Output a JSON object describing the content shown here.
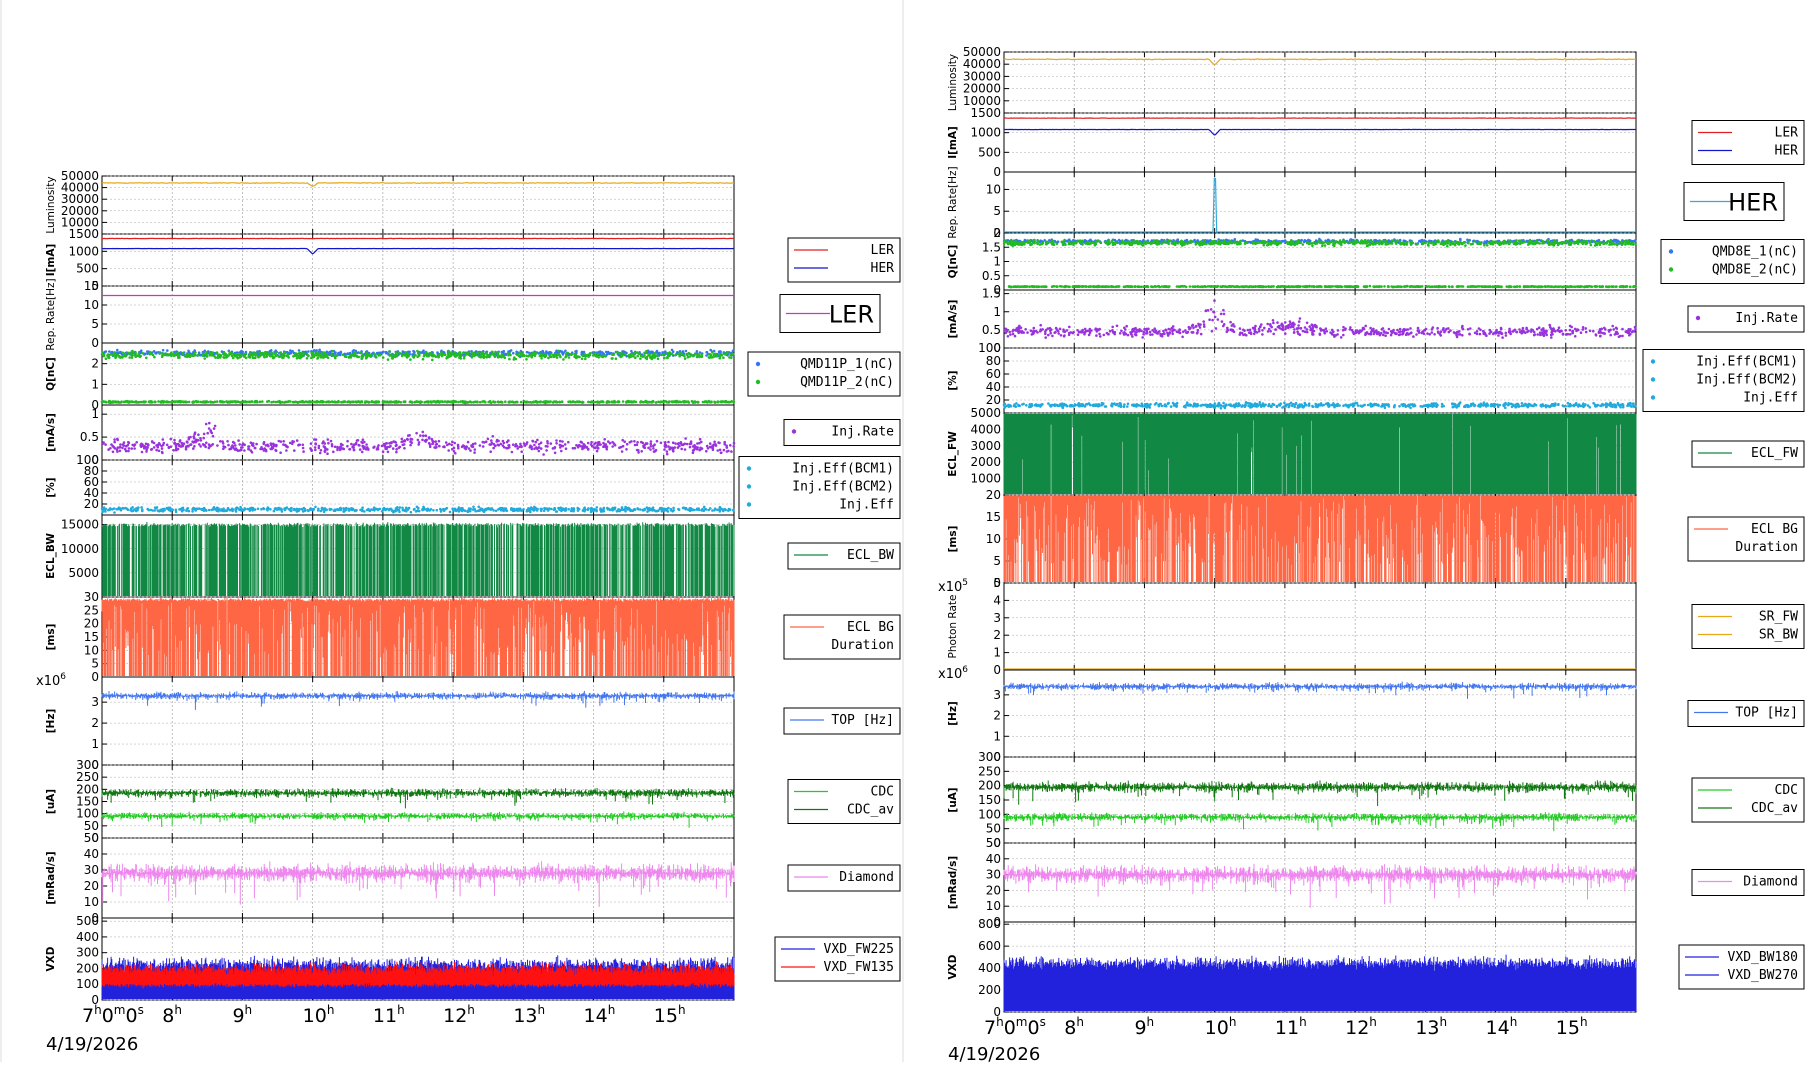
{
  "colors": {
    "luminosity": "#e6a817",
    "ler": "#e02020",
    "her": "#1515cc",
    "rep_ler": "#cc33cc",
    "rep_her": "#33aadd",
    "q1": "#3377ee",
    "q2": "#22bb22",
    "inj_rate": "#9933dd",
    "inj_eff": "#22aadd",
    "ecl": "#118844",
    "ecl_bg": "#ff6644",
    "sr_fw": "#e6a817",
    "sr_bw": "#ff2200",
    "top": "#4477ee",
    "cdc": "#22cc22",
    "cdc_av": "#117711",
    "diamond": "#ee88ee",
    "vxd_a": "#2222dd",
    "vxd_b": "#ff1111"
  },
  "chart_data": [
    {
      "type": "line",
      "title": "",
      "x_tick_labels": [
        "7h0m0s",
        "8h",
        "9h",
        "10h",
        "11h",
        "12h",
        "13h",
        "14h",
        "15h"
      ],
      "xlim": [
        7.0,
        16.0
      ],
      "date": "4/19/2026",
      "panels": [
        {
          "id": "lum",
          "ylabel": "Luminosity",
          "ylim": [
            0,
            50000
          ],
          "yticks": [
            10000,
            20000,
            30000,
            40000,
            50000
          ],
          "series": [
            {
              "name": "",
              "kind": "line",
              "color": "luminosity",
              "base": 44000,
              "noise": 1500,
              "dips": [
                [
                  10.0,
                  -3000
                ]
              ]
            }
          ]
        },
        {
          "id": "cur",
          "ylabel": "I[mA]",
          "ylim": [
            0,
            1500
          ],
          "yticks": [
            0,
            500,
            1000,
            1500
          ],
          "legend": [
            "LER",
            "HER"
          ],
          "series": [
            {
              "name": "LER",
              "kind": "line",
              "color": "ler",
              "base": 1370,
              "noise": 25
            },
            {
              "name": "HER",
              "kind": "line",
              "color": "her",
              "base": 1080,
              "noise": 10,
              "dips": [
                [
                  10.0,
                  -160
                ]
              ]
            }
          ]
        },
        {
          "id": "rep",
          "ylabel": "Rep. Rate[Hz]",
          "ylim": [
            0,
            15
          ],
          "yticks": [
            0,
            5,
            10,
            15
          ],
          "legend_big": "LER",
          "series": [
            {
              "name": "LER",
              "kind": "line",
              "color": "rep_ler",
              "base": 12.5,
              "noise": 0.05
            }
          ]
        },
        {
          "id": "q",
          "ylabel": "Q[nC]",
          "ylim": [
            0,
            3
          ],
          "yticks": [
            0,
            1,
            2
          ],
          "legend": [
            "QMD11P_1(nC)",
            "QMD11P_2(nC)"
          ],
          "series": [
            {
              "name": "QMD11P_1(nC)",
              "kind": "scatter",
              "color": "q1",
              "base": 2.5,
              "noise": 0.2
            },
            {
              "name": "QMD11P_2(nC)",
              "kind": "scatter",
              "color": "q2",
              "base": 2.4,
              "noise": 0.25
            },
            {
              "name": "",
              "kind": "scatter",
              "color": "q2",
              "base": 0.15,
              "noise": 0.05
            }
          ]
        },
        {
          "id": "rate",
          "ylabel": "[mA/s]",
          "ylim": [
            0,
            1.2
          ],
          "yticks": [
            0,
            0.5,
            1
          ],
          "legend": [
            "Inj.Rate"
          ],
          "series": [
            {
              "name": "Inj.Rate",
              "kind": "scatter",
              "color": "inj_rate",
              "base": 0.3,
              "noise": 0.2,
              "bumps": [
                [
                  8.5,
                  0.5
                ],
                [
                  11.5,
                  0.3
                ],
                [
                  12.5,
                  0.2
                ],
                [
                  14.2,
                  0.1
                ]
              ]
            }
          ]
        },
        {
          "id": "eff",
          "ylabel": "[%]",
          "ylim": [
            0,
            100
          ],
          "yticks": [
            20,
            40,
            60,
            80,
            100
          ],
          "legend": [
            "Inj.Eff(BCM1)",
            "Inj.Eff(BCM2)",
            "Inj.Eff"
          ],
          "series": [
            {
              "name": "Inj.Eff",
              "kind": "scatter",
              "color": "inj_eff",
              "base": 10,
              "noise": 6
            }
          ]
        },
        {
          "id": "ecl",
          "ylabel": "ECL_BW",
          "ylim": [
            0,
            17000
          ],
          "yticks": [
            5000,
            10000,
            15000
          ],
          "legend": [
            "ECL_BW"
          ],
          "series": [
            {
              "name": "ECL_BW",
              "kind": "fill",
              "color": "ecl",
              "base": 15000,
              "noise": 600,
              "spikes": [
                0.25,
                14
              ]
            }
          ]
        },
        {
          "id": "eclbg",
          "ylabel": "[ms]",
          "ylim": [
            0,
            30
          ],
          "yticks": [
            0,
            5,
            10,
            15,
            20,
            25,
            30
          ],
          "legend": [
            "ECL BG",
            "Duration"
          ],
          "series": [
            {
              "name": "ECL BG Duration",
              "kind": "fill",
              "color": "ecl_bg",
              "base": 29,
              "noise": 1,
              "spikes": [
                0.3,
                22
              ]
            }
          ]
        },
        {
          "id": "top",
          "ylabel": "[Hz]",
          "ylim": [
            0,
            4.2
          ],
          "yticks": [
            0,
            1,
            2,
            3
          ],
          "multiplier": "x10^6",
          "legend": [
            "TOP [Hz]"
          ],
          "series": [
            {
              "name": "TOP [Hz]",
              "kind": "band",
              "color": "top",
              "base": 3.3,
              "noise": 0.25
            }
          ]
        },
        {
          "id": "cdc",
          "ylabel": "[uA]",
          "ylim": [
            0,
            300
          ],
          "yticks": [
            0,
            50,
            100,
            150,
            200,
            250,
            300
          ],
          "legend": [
            "CDC",
            "CDC_av"
          ],
          "series": [
            {
              "name": "CDC_av",
              "kind": "band",
              "color": "cdc_av",
              "base": 185,
              "noise": 25
            },
            {
              "name": "CDC",
              "kind": "band",
              "color": "cdc",
              "base": 90,
              "noise": 20
            }
          ]
        },
        {
          "id": "dia",
          "ylabel": "[mRad/s]",
          "ylim": [
            0,
            50
          ],
          "yticks": [
            0,
            10,
            20,
            30,
            40,
            50
          ],
          "legend": [
            "Diamond"
          ],
          "series": [
            {
              "name": "Diamond",
              "kind": "band",
              "color": "diamond",
              "base": 28,
              "noise": 8
            }
          ]
        },
        {
          "id": "vxd",
          "ylabel": "VXD",
          "ylim": [
            0,
            520
          ],
          "yticks": [
            0,
            100,
            200,
            300,
            400,
            500
          ],
          "legend": [
            "VXD_FW225",
            "VXD_FW135"
          ],
          "series": [
            {
              "name": "VXD_FW225",
              "kind": "fill",
              "color": "vxd_a",
              "base": 230,
              "noise": 60
            },
            {
              "name": "VXD_FW135",
              "kind": "fill",
              "color": "vxd_b",
              "base": 200,
              "noise": 50
            },
            {
              "name": "",
              "kind": "fill",
              "color": "vxd_a",
              "base": 90,
              "noise": 20
            }
          ]
        }
      ]
    },
    {
      "type": "line",
      "title": "",
      "x_tick_labels": [
        "7h0m0s",
        "8h",
        "9h",
        "10h",
        "11h",
        "12h",
        "13h",
        "14h",
        "15h"
      ],
      "xlim": [
        7.0,
        16.0
      ],
      "date": "4/19/2026",
      "panels": [
        {
          "id": "lum",
          "ylabel": "Luminosity",
          "ylim": [
            0,
            50000
          ],
          "yticks": [
            10000,
            20000,
            30000,
            40000,
            50000
          ],
          "series": [
            {
              "name": "",
              "kind": "line",
              "color": "luminosity",
              "base": 44000,
              "noise": 1500,
              "dips": [
                [
                  10.0,
                  -5000
                ]
              ]
            }
          ]
        },
        {
          "id": "cur",
          "ylabel": "I[mA]",
          "ylim": [
            0,
            1500
          ],
          "yticks": [
            0,
            500,
            1000,
            1500
          ],
          "legend": [
            "LER",
            "HER"
          ],
          "series": [
            {
              "name": "LER",
              "kind": "line",
              "color": "ler",
              "base": 1370,
              "noise": 25
            },
            {
              "name": "HER",
              "kind": "line",
              "color": "her",
              "base": 1080,
              "noise": 10,
              "dips": [
                [
                  10.0,
                  -150
                ]
              ]
            }
          ]
        },
        {
          "id": "rep",
          "ylabel": "Rep. Rate[Hz]",
          "ylim": [
            0,
            14
          ],
          "yticks": [
            0,
            5,
            10
          ],
          "legend_big": "HER",
          "series": [
            {
              "name": "HER",
              "kind": "line",
              "color": "rep_her",
              "base": 0,
              "noise": 0,
              "spikes_at": [
                [
                  10.0,
                  12.5
                ]
              ]
            }
          ]
        },
        {
          "id": "q",
          "ylabel": "Q[nC]",
          "ylim": [
            0,
            2
          ],
          "yticks": [
            0,
            0.5,
            1,
            1.5,
            2
          ],
          "legend": [
            "QMD8E_1(nC)",
            "QMD8E_2(nC)"
          ],
          "series": [
            {
              "name": "QMD8E_1(nC)",
              "kind": "scatter",
              "color": "q1",
              "base": 1.7,
              "noise": 0.1
            },
            {
              "name": "QMD8E_2(nC)",
              "kind": "scatter",
              "color": "q2",
              "base": 1.65,
              "noise": 0.12
            },
            {
              "name": "",
              "kind": "scatter",
              "color": "q2",
              "base": 0.12,
              "noise": 0.02
            }
          ]
        },
        {
          "id": "rate",
          "ylabel": "[mA/s]",
          "ylim": [
            0,
            1.6
          ],
          "yticks": [
            0,
            0.5,
            1,
            1.5
          ],
          "legend": [
            "Inj.Rate"
          ],
          "series": [
            {
              "name": "Inj.Rate",
              "kind": "scatter",
              "color": "inj_rate",
              "base": 0.45,
              "noise": 0.2,
              "bumps": [
                [
                  10.0,
                  0.9
                ],
                [
                  10.8,
                  0.3
                ],
                [
                  11.2,
                  0.3
                ]
              ]
            }
          ]
        },
        {
          "id": "eff",
          "ylabel": "[%]",
          "ylim": [
            0,
            100
          ],
          "yticks": [
            20,
            40,
            60,
            80,
            100
          ],
          "legend": [
            "Inj.Eff(BCM1)",
            "Inj.Eff(BCM2)",
            "Inj.Eff"
          ],
          "series": [
            {
              "name": "Inj.Eff",
              "kind": "scatter",
              "color": "inj_eff",
              "base": 12,
              "noise": 5
            }
          ]
        },
        {
          "id": "ecl",
          "ylabel": "ECL_FW",
          "ylim": [
            0,
            5000
          ],
          "yticks": [
            1000,
            2000,
            3000,
            4000,
            5000
          ],
          "legend": [
            "ECL_FW"
          ],
          "series": [
            {
              "name": "ECL_FW",
              "kind": "fill",
              "color": "ecl",
              "base": 5000,
              "noise": 0,
              "spikes": [
                0.03,
                3500
              ]
            }
          ]
        },
        {
          "id": "eclbg",
          "ylabel": "[ms]",
          "ylim": [
            0,
            20
          ],
          "yticks": [
            0,
            5,
            10,
            15,
            20
          ],
          "legend": [
            "ECL BG",
            "Duration"
          ],
          "series": [
            {
              "name": "ECL BG Duration",
              "kind": "fill",
              "color": "ecl_bg",
              "base": 20,
              "noise": 0,
              "spikes": [
                0.35,
                16
              ]
            }
          ]
        },
        {
          "id": "photon",
          "ylabel": "Photon Rate",
          "ylim": [
            0,
            5
          ],
          "yticks": [
            0,
            1,
            2,
            3,
            4,
            5
          ],
          "multiplier": "x10^5",
          "legend": [
            "SR_FW",
            "SR_BW"
          ],
          "series": [
            {
              "name": "SR_FW",
              "kind": "line",
              "color": "sr_fw",
              "base": 0.05,
              "noise": 0.01
            }
          ]
        },
        {
          "id": "top",
          "ylabel": "[Hz]",
          "ylim": [
            0,
            4.2
          ],
          "yticks": [
            0,
            1,
            2,
            3
          ],
          "multiplier": "x10^6",
          "legend": [
            "TOP [Hz]"
          ],
          "series": [
            {
              "name": "TOP [Hz]",
              "kind": "band",
              "color": "top",
              "base": 3.4,
              "noise": 0.25
            }
          ]
        },
        {
          "id": "cdc",
          "ylabel": "[uA]",
          "ylim": [
            0,
            300
          ],
          "yticks": [
            0,
            50,
            100,
            150,
            200,
            250,
            300
          ],
          "legend": [
            "CDC",
            "CDC_av"
          ],
          "series": [
            {
              "name": "CDC_av",
              "kind": "band",
              "color": "cdc_av",
              "base": 195,
              "noise": 25
            },
            {
              "name": "CDC",
              "kind": "band",
              "color": "cdc",
              "base": 90,
              "noise": 20
            }
          ]
        },
        {
          "id": "dia",
          "ylabel": "[mRad/s]",
          "ylim": [
            0,
            50
          ],
          "yticks": [
            0,
            10,
            20,
            30,
            40,
            50
          ],
          "legend": [
            "Diamond"
          ],
          "series": [
            {
              "name": "Diamond",
              "kind": "band",
              "color": "diamond",
              "base": 30,
              "noise": 8
            }
          ]
        },
        {
          "id": "vxd",
          "ylabel": "VXD",
          "ylim": [
            0,
            820
          ],
          "yticks": [
            0,
            200,
            400,
            600,
            800
          ],
          "legend": [
            "VXD_BW180",
            "VXD_BW270"
          ],
          "series": [
            {
              "name": "VXD_BW270",
              "kind": "fill",
              "color": "vxd_a",
              "base": 450,
              "noise": 80
            }
          ]
        }
      ]
    }
  ]
}
